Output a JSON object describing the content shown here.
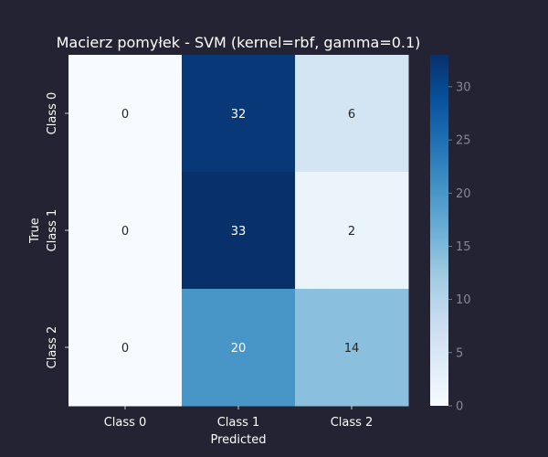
{
  "chart_data": {
    "type": "heatmap",
    "title": "Macierz pomyłek - SVM (kernel=rbf, gamma=0.1)",
    "xlabel": "Predicted",
    "ylabel": "True",
    "x_categories": [
      "Class 0",
      "Class 1",
      "Class 2"
    ],
    "y_categories": [
      "Class 0",
      "Class 1",
      "Class 2"
    ],
    "values": [
      [
        0,
        32,
        6
      ],
      [
        0,
        33,
        2
      ],
      [
        0,
        20,
        14
      ]
    ],
    "colorbar": {
      "range": [
        0,
        33
      ],
      "ticks": [
        0,
        5,
        10,
        15,
        20,
        25,
        30
      ],
      "colormap": "Blues"
    },
    "colors": {
      "background": "#232333",
      "text": "#ffffff",
      "tick_label": "#888899",
      "cell_text_light": "#ffffff",
      "cell_text_dark": "#262626"
    }
  }
}
